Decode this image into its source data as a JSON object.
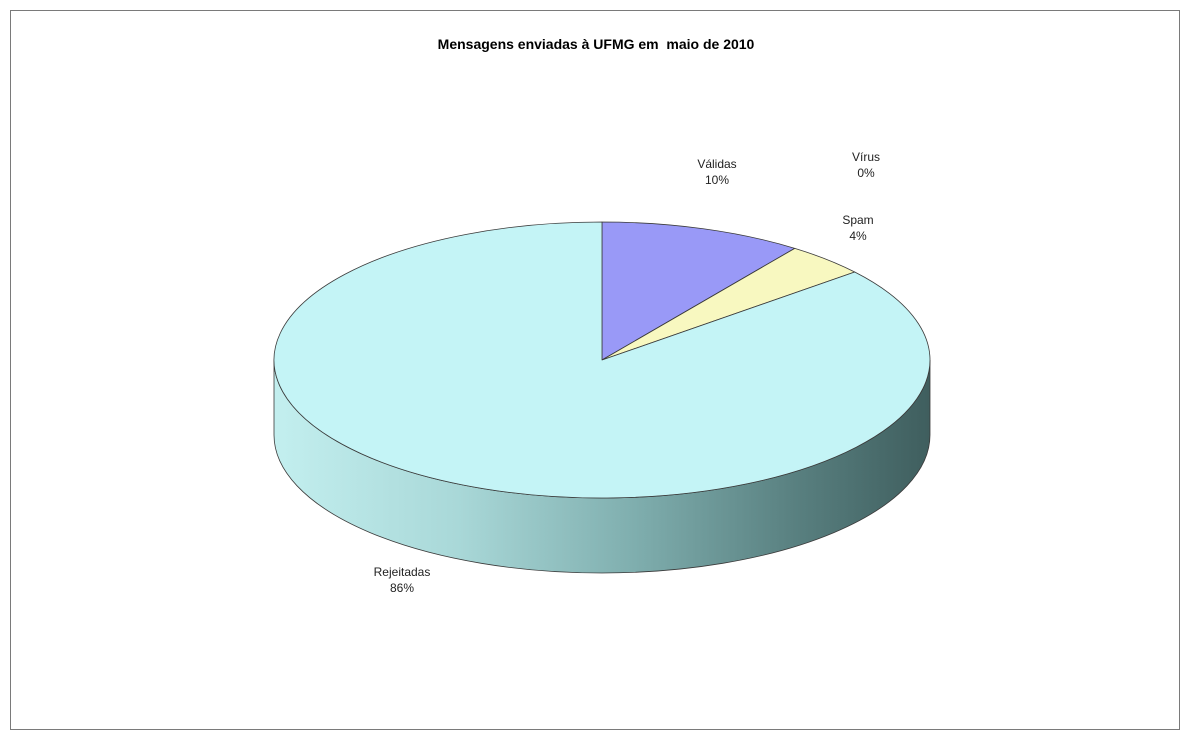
{
  "chart_data": {
    "type": "pie",
    "title": "Mensagens enviadas à UFMG em  maio de 2010",
    "three_d": true,
    "slices": [
      {
        "label": "Válidas",
        "value": 10,
        "percent_label": "10%",
        "color": "#9999f7"
      },
      {
        "label": "Vírus",
        "value": 0,
        "percent_label": "0%",
        "color": "#8a1a4a"
      },
      {
        "label": "Spam",
        "value": 4,
        "percent_label": "4%",
        "color": "#f8f8c0"
      },
      {
        "label": "Rejeitadas",
        "value": 86,
        "percent_label": "86%",
        "color": "#c4f4f6"
      }
    ]
  }
}
